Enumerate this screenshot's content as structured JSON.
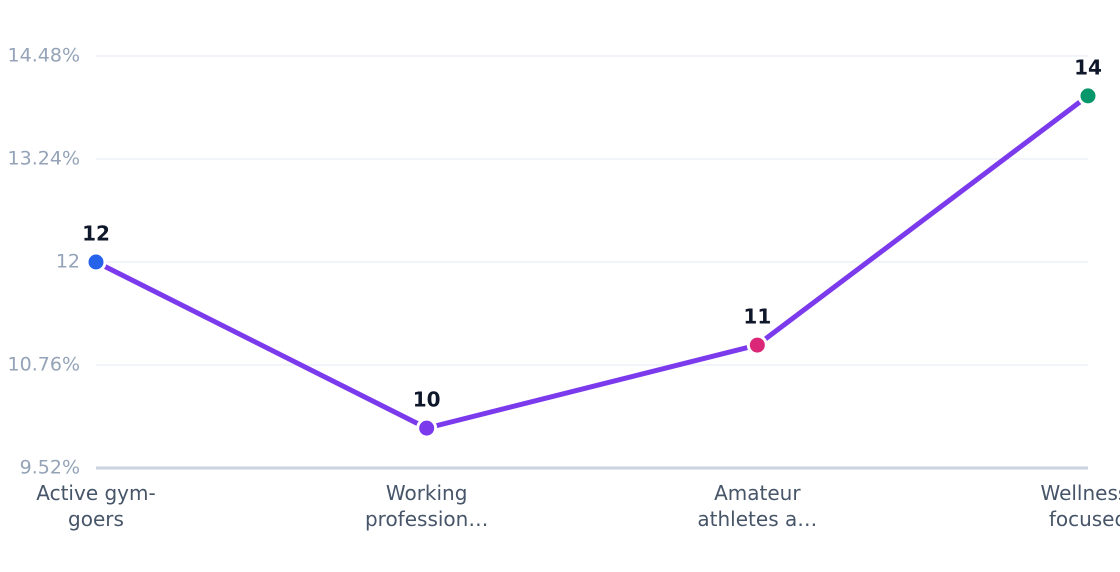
{
  "chart_data": {
    "type": "line",
    "categories": [
      "Active gym-goers",
      "Working profession…",
      "Amateur athletes a…",
      "Wellness-focused"
    ],
    "series": [
      {
        "color": "#7c3aed",
        "values": [
          12,
          10,
          11,
          14
        ]
      }
    ],
    "point_colors": [
      "#2563eb",
      "#7c3aed",
      "#db2777",
      "#059669"
    ],
    "ylim": [
      9.52,
      14.48
    ],
    "yticks": [
      {
        "value": 9.52,
        "label": "9.52%"
      },
      {
        "value": 10.76,
        "label": "10.76%"
      },
      12,
      {
        "value": 13.24,
        "label": "13.24%"
      },
      {
        "value": 14.48,
        "label": "14.48%"
      }
    ],
    "grid": true
  }
}
